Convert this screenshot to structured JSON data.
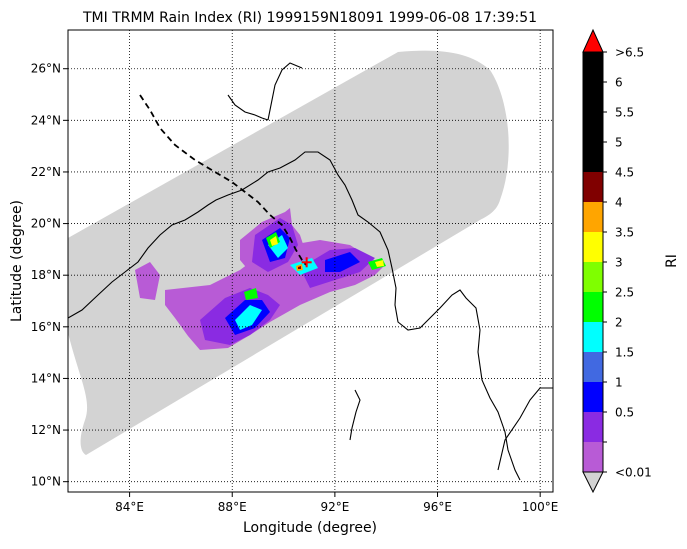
{
  "title": "TMI TRMM Rain Index (RI) 1999159N18091 1999-06-08 17:39:51",
  "x_axis": {
    "label": "Longitude (degree)",
    "ticks": [
      {
        "value": 84,
        "label": "84°E"
      },
      {
        "value": 88,
        "label": "88°E"
      },
      {
        "value": 92,
        "label": "92°E"
      },
      {
        "value": 96,
        "label": "96°E"
      },
      {
        "value": 100,
        "label": "100°E"
      }
    ],
    "range": [
      81.6,
      100.5
    ]
  },
  "y_axis": {
    "label": "Latitude (degree)",
    "ticks": [
      {
        "value": 10,
        "label": "10°N"
      },
      {
        "value": 12,
        "label": "12°N"
      },
      {
        "value": 14,
        "label": "14°N"
      },
      {
        "value": 16,
        "label": "16°N"
      },
      {
        "value": 18,
        "label": "18°N"
      },
      {
        "value": 20,
        "label": "20°N"
      },
      {
        "value": 22,
        "label": "22°N"
      },
      {
        "value": 24,
        "label": "24°N"
      },
      {
        "value": 26,
        "label": "26°N"
      }
    ],
    "range": [
      9.6,
      27.5
    ]
  },
  "grid": "dotted",
  "colorbar": {
    "label": "RI",
    "bins": [
      {
        "label": "<0.01",
        "color": "#b85bd6"
      },
      {
        "label": "0.5",
        "color": "#8a2be2"
      },
      {
        "label": "1",
        "color": "#0000ff"
      },
      {
        "label": "1.5",
        "color": "#4169e1"
      },
      {
        "label": "2",
        "color": "#00ffff"
      },
      {
        "label": "2.5",
        "color": "#00ff00"
      },
      {
        "label": "3",
        "color": "#7fff00"
      },
      {
        "label": "3.5",
        "color": "#ffff00"
      },
      {
        "label": "4",
        "color": "#ffa500"
      },
      {
        "label": "4.5",
        "color": "#800000"
      },
      {
        "label": "5",
        "color": "#000000"
      },
      {
        "label": "5.5",
        "color": "#000000"
      },
      {
        "label": "6",
        "color": "#000000"
      },
      {
        "label": ">6.5",
        "color": "#000000"
      }
    ],
    "over_color": "#ff0000",
    "under_color": "#d3d3d3"
  },
  "swath_color": "#d3d3d3",
  "storm_center": {
    "lon": 90.9,
    "lat": 18.5,
    "color": "#ff0000"
  }
}
